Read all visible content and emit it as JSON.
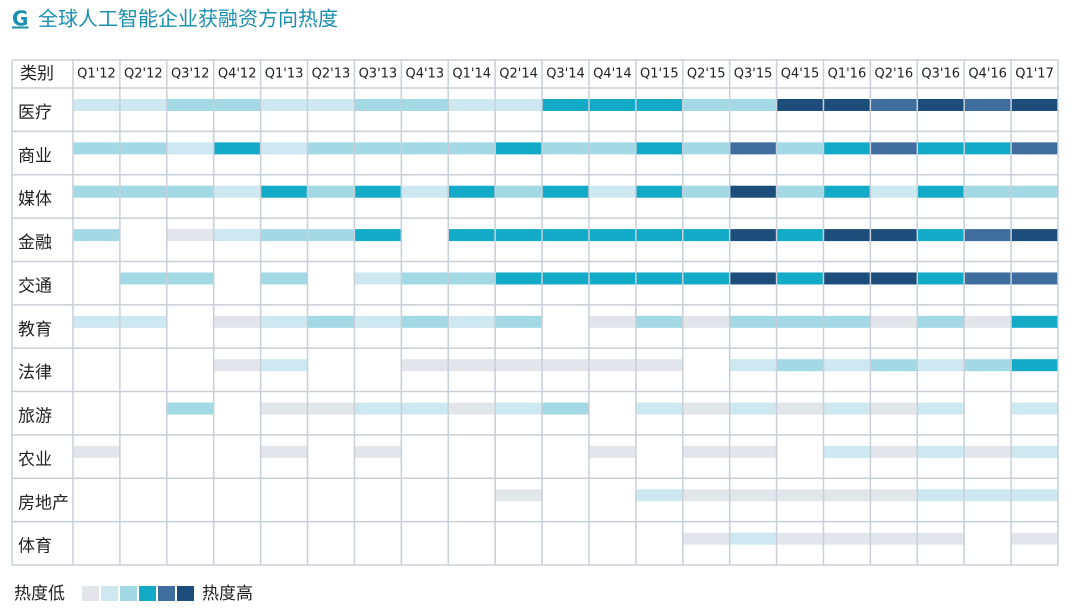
{
  "chart_data": {
    "type": "heatmap",
    "title_prefix": "G",
    "title": "全球人工智能企业获融资方向热度",
    "corner_label": "类别",
    "categories": [
      "Q1'12",
      "Q2'12",
      "Q3'12",
      "Q4'12",
      "Q1'13",
      "Q2'13",
      "Q3'13",
      "Q4'13",
      "Q1'14",
      "Q2'14",
      "Q3'14",
      "Q4'14",
      "Q1'15",
      "Q2'15",
      "Q3'15",
      "Q4'15",
      "Q1'16",
      "Q2'16",
      "Q3'16",
      "Q4'16",
      "Q1'17"
    ],
    "rows": [
      "医疗",
      "商业",
      "媒体",
      "金融",
      "交通",
      "教育",
      "法律",
      "旅游",
      "农业",
      "房地产",
      "体育"
    ],
    "values": [
      [
        2,
        2,
        3,
        3,
        2,
        2,
        3,
        3,
        2,
        2,
        4,
        4,
        4,
        3,
        3,
        6,
        6,
        5,
        6,
        5,
        6
      ],
      [
        3,
        3,
        2,
        4,
        2,
        3,
        3,
        3,
        3,
        4,
        3,
        3,
        4,
        3,
        5,
        3,
        4,
        5,
        4,
        4,
        5
      ],
      [
        3,
        3,
        3,
        2,
        4,
        3,
        4,
        2,
        4,
        3,
        4,
        2,
        4,
        3,
        6,
        3,
        4,
        2,
        4,
        3,
        3
      ],
      [
        3,
        0,
        1,
        2,
        3,
        3,
        4,
        0,
        4,
        4,
        4,
        4,
        4,
        4,
        6,
        4,
        6,
        6,
        4,
        5,
        6
      ],
      [
        0,
        3,
        3,
        0,
        3,
        0,
        2,
        3,
        3,
        4,
        4,
        4,
        4,
        4,
        6,
        4,
        6,
        6,
        4,
        5,
        5
      ],
      [
        2,
        2,
        0,
        1,
        2,
        3,
        2,
        3,
        2,
        3,
        0,
        1,
        3,
        1,
        3,
        3,
        3,
        1,
        3,
        1,
        4
      ],
      [
        0,
        0,
        0,
        1,
        2,
        0,
        0,
        1,
        1,
        1,
        1,
        1,
        1,
        0,
        2,
        3,
        2,
        3,
        2,
        3,
        4
      ],
      [
        0,
        0,
        3,
        0,
        1,
        1,
        2,
        2,
        1,
        2,
        3,
        0,
        2,
        1,
        2,
        1,
        2,
        1,
        2,
        0,
        2
      ],
      [
        1,
        0,
        0,
        0,
        1,
        0,
        1,
        0,
        0,
        0,
        0,
        1,
        0,
        1,
        1,
        0,
        2,
        1,
        2,
        1,
        2
      ],
      [
        0,
        0,
        0,
        0,
        0,
        0,
        0,
        0,
        0,
        1,
        0,
        0,
        2,
        1,
        1,
        1,
        1,
        1,
        2,
        2,
        2
      ],
      [
        0,
        0,
        0,
        0,
        0,
        0,
        0,
        0,
        0,
        0,
        0,
        0,
        0,
        1,
        2,
        1,
        1,
        1,
        1,
        0,
        1
      ]
    ],
    "colors": [
      "#e2e5e9",
      "#cde8f0",
      "#a3d8e5",
      "#12aac6",
      "#3f6e9e",
      "#1c4d7b"
    ],
    "legend_low": "热度低",
    "legend_high": "热度高"
  }
}
